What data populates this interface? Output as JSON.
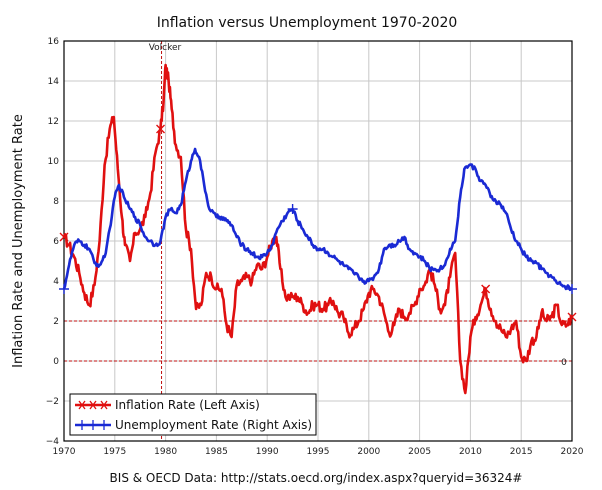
{
  "chart_data": {
    "type": "line",
    "title": "Inflation versus Unemployment 1970-2020",
    "xlabel": "",
    "ylabel": "Inflation Rate and Unemployment Rate",
    "xlim": [
      1970,
      2020
    ],
    "ylim": [
      -4,
      16
    ],
    "x_ticks": [
      "1970",
      "1975",
      "1980",
      "1985",
      "1990",
      "1995",
      "2000",
      "2005",
      "2010",
      "2015",
      "2020"
    ],
    "y_ticks": [
      "−4",
      "−2",
      "0",
      "2",
      "4",
      "6",
      "8",
      "10",
      "12",
      "14",
      "16"
    ],
    "grid": true,
    "legend_position": "bottom-left",
    "source": "BIS & OECD Data: http://stats.oecd.org/index.aspx?queryid=36324#",
    "annotations": [
      {
        "label": "Volcker",
        "x": 1979.6,
        "style": "vertical-dashed"
      },
      {
        "label": "",
        "y": 2,
        "style": "horizontal-dashed"
      },
      {
        "label": "",
        "y": 0,
        "style": "horizontal-dashed"
      },
      {
        "label": "0",
        "x": 2019.3,
        "y": 0
      }
    ],
    "series": [
      {
        "name": "Inflation Rate (Left Axis)",
        "color": "#e01010",
        "marker": "x",
        "x": [
          1970.0,
          1970.5,
          1971.0,
          1971.5,
          1972.0,
          1972.5,
          1973.0,
          1973.5,
          1974.0,
          1974.5,
          1974.9,
          1975.3,
          1975.7,
          1976.0,
          1976.5,
          1977.0,
          1977.5,
          1978.0,
          1978.5,
          1979.0,
          1979.5,
          1979.8,
          1980.0,
          1980.3,
          1980.6,
          1981.0,
          1981.5,
          1982.0,
          1982.5,
          1983.0,
          1983.5,
          1984.0,
          1984.5,
          1985.0,
          1985.5,
          1986.0,
          1986.5,
          1987.0,
          1987.5,
          1988.0,
          1988.5,
          1989.0,
          1989.5,
          1990.0,
          1990.5,
          1990.9,
          1991.3,
          1991.8,
          1992.5,
          1993.0,
          1993.5,
          1994.0,
          1994.5,
          1995.0,
          1995.5,
          1996.0,
          1996.5,
          1997.0,
          1997.5,
          1998.0,
          1998.5,
          1999.0,
          1999.5,
          2000.0,
          2000.5,
          2001.0,
          2001.5,
          2002.0,
          2002.5,
          2003.0,
          2003.5,
          2004.0,
          2004.5,
          2005.0,
          2005.5,
          2006.0,
          2006.5,
          2007.0,
          2007.5,
          2008.0,
          2008.5,
          2009.0,
          2009.5,
          2010.0,
          2010.5,
          2011.0,
          2011.5,
          2012.0,
          2012.5,
          2013.0,
          2013.5,
          2014.0,
          2014.5,
          2015.0,
          2015.5,
          2016.0,
          2016.5,
          2017.0,
          2017.5,
          2018.0,
          2018.5,
          2019.0,
          2019.5,
          2020.0
        ],
        "values": [
          6.2,
          5.8,
          5.2,
          4.4,
          3.4,
          2.8,
          3.8,
          6.0,
          9.8,
          11.6,
          12.2,
          9.6,
          7.2,
          5.8,
          5.0,
          6.4,
          6.6,
          7.2,
          8.4,
          10.4,
          11.6,
          13.0,
          14.8,
          14.0,
          12.6,
          10.8,
          10.2,
          6.6,
          5.6,
          2.6,
          2.8,
          4.4,
          4.2,
          3.6,
          3.6,
          1.8,
          1.2,
          3.8,
          4.0,
          4.2,
          4.0,
          4.8,
          4.6,
          5.2,
          6.0,
          6.2,
          4.6,
          3.2,
          3.2,
          3.2,
          2.8,
          2.4,
          2.8,
          2.8,
          2.6,
          2.8,
          3.0,
          2.4,
          2.2,
          1.4,
          1.6,
          2.0,
          2.6,
          3.4,
          3.6,
          3.2,
          2.4,
          1.4,
          1.8,
          2.6,
          2.2,
          2.4,
          2.8,
          3.6,
          3.8,
          4.6,
          3.8,
          2.6,
          2.8,
          4.2,
          5.4,
          0.0,
          -1.6,
          1.2,
          2.2,
          2.8,
          3.6,
          2.6,
          2.0,
          1.6,
          1.2,
          1.6,
          2.0,
          0.2,
          0.0,
          1.0,
          1.2,
          2.4,
          2.0,
          2.2,
          2.8,
          1.8,
          1.8,
          2.2
        ],
        "markers_x": [
          1970.0,
          1979.6,
          2011.5,
          2020.0
        ]
      },
      {
        "name": "Unemployment Rate (Right Axis)",
        "color": "#1a2ad4",
        "marker": "+",
        "x": [
          1970.0,
          1970.5,
          1971.0,
          1971.5,
          1972.0,
          1972.5,
          1973.0,
          1973.5,
          1974.0,
          1974.5,
          1975.0,
          1975.4,
          1975.9,
          1976.5,
          1977.0,
          1977.5,
          1978.0,
          1978.5,
          1979.0,
          1979.5,
          1980.0,
          1980.5,
          1981.0,
          1981.5,
          1982.0,
          1982.5,
          1982.9,
          1983.3,
          1983.8,
          1984.3,
          1985.0,
          1985.5,
          1986.0,
          1986.5,
          1987.0,
          1987.5,
          1988.0,
          1988.5,
          1989.0,
          1989.5,
          1990.0,
          1990.5,
          1991.0,
          1991.5,
          1992.0,
          1992.5,
          1993.0,
          1993.5,
          1994.0,
          1994.5,
          1995.0,
          1995.5,
          1996.0,
          1996.5,
          1997.0,
          1997.5,
          1998.0,
          1998.5,
          1999.0,
          1999.5,
          2000.0,
          2000.5,
          2001.0,
          2001.5,
          2002.0,
          2002.5,
          2003.0,
          2003.5,
          2004.0,
          2004.5,
          2005.0,
          2005.5,
          2006.0,
          2006.5,
          2007.0,
          2007.5,
          2008.0,
          2008.5,
          2009.0,
          2009.4,
          2009.9,
          2010.5,
          2011.0,
          2011.5,
          2012.0,
          2012.5,
          2013.0,
          2013.5,
          2014.0,
          2014.5,
          2015.0,
          2015.5,
          2016.0,
          2016.5,
          2017.0,
          2017.5,
          2018.0,
          2018.5,
          2019.0,
          2019.5,
          2020.0
        ],
        "values": [
          3.6,
          4.8,
          5.8,
          6.0,
          5.8,
          5.6,
          4.9,
          4.8,
          5.2,
          6.6,
          8.2,
          8.8,
          8.2,
          7.6,
          7.2,
          6.8,
          6.2,
          6.0,
          5.8,
          6.0,
          7.2,
          7.6,
          7.4,
          7.8,
          9.0,
          10.0,
          10.6,
          10.2,
          8.8,
          7.6,
          7.2,
          7.2,
          7.0,
          6.8,
          6.2,
          5.8,
          5.6,
          5.4,
          5.2,
          5.2,
          5.4,
          5.8,
          6.6,
          7.0,
          7.4,
          7.6,
          7.0,
          6.6,
          6.2,
          5.8,
          5.6,
          5.6,
          5.4,
          5.2,
          5.0,
          4.8,
          4.6,
          4.4,
          4.2,
          4.0,
          4.0,
          4.2,
          4.6,
          5.6,
          5.8,
          5.8,
          6.0,
          6.2,
          5.6,
          5.4,
          5.2,
          5.0,
          4.6,
          4.6,
          4.6,
          4.8,
          5.6,
          6.0,
          8.2,
          9.6,
          9.8,
          9.6,
          9.0,
          8.8,
          8.2,
          8.0,
          7.8,
          7.4,
          6.6,
          6.0,
          5.6,
          5.2,
          5.0,
          4.9,
          4.6,
          4.4,
          4.2,
          3.9,
          3.8,
          3.7,
          3.6
        ],
        "markers_x": [
          1970.0,
          1992.5,
          2020.0
        ]
      }
    ]
  }
}
